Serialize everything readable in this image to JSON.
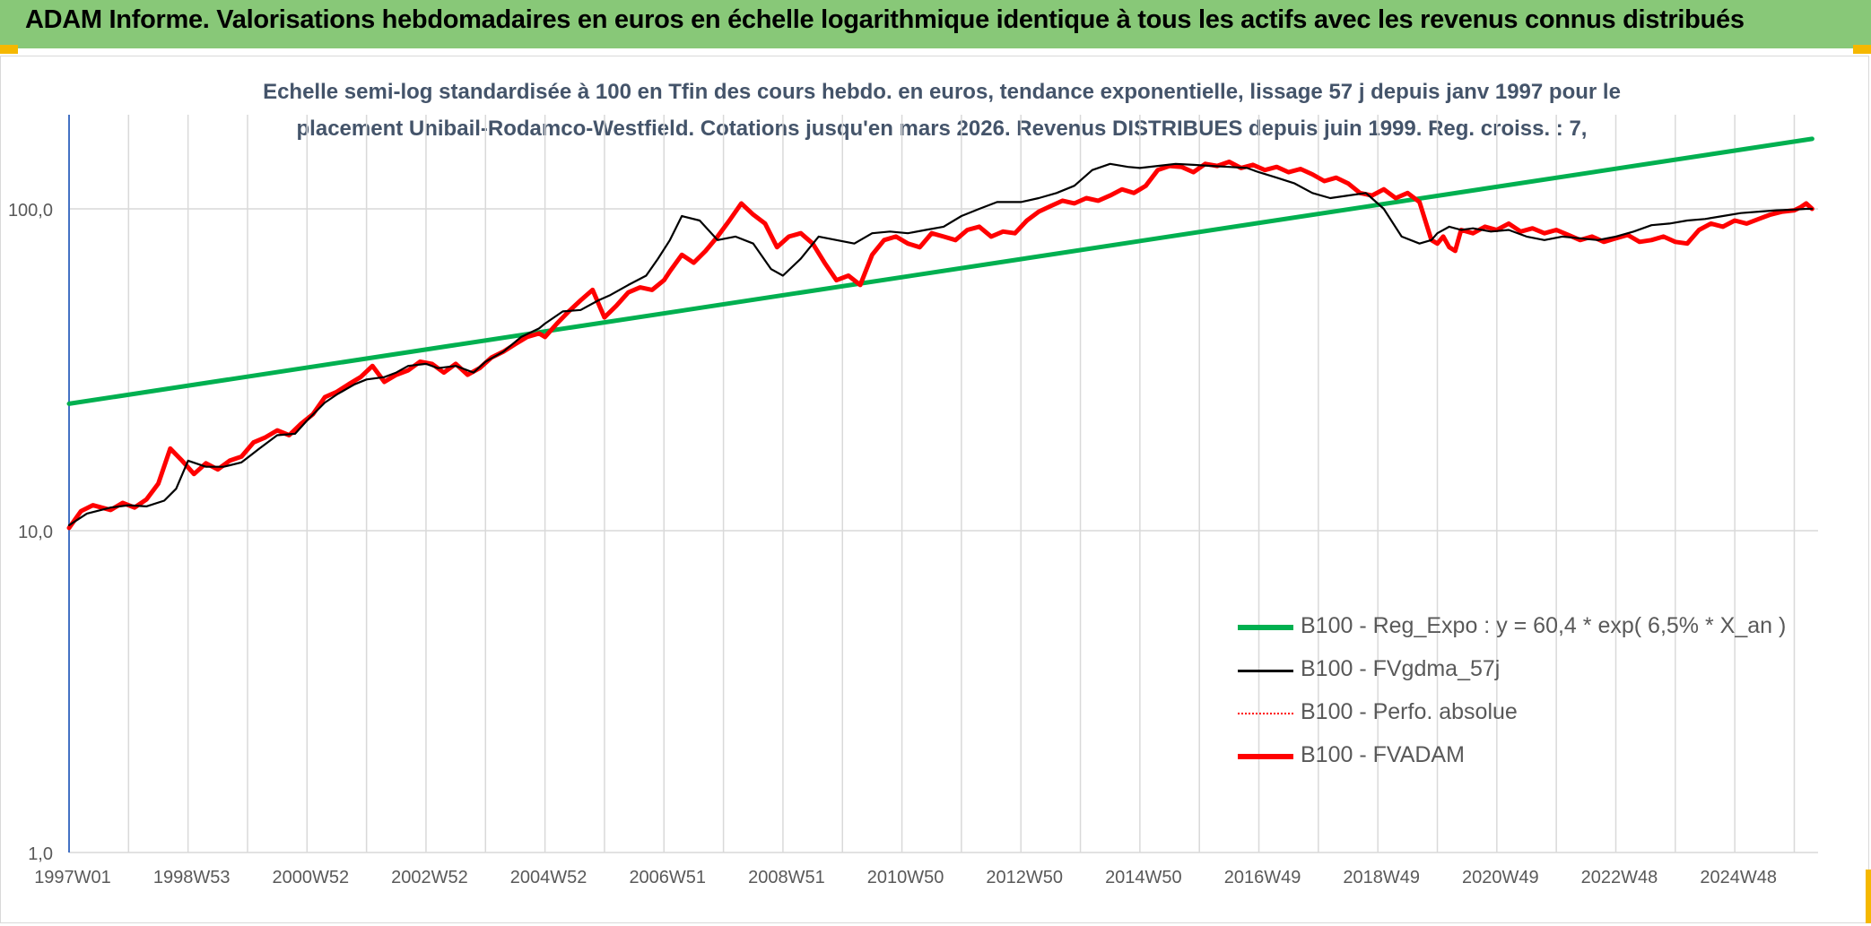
{
  "header": {
    "title": "ADAM Informe. Valorisations hebdomadaires en euros en échelle logarithmique identique à tous les actifs avec les revenus connus distribués"
  },
  "chart_data": {
    "type": "line",
    "title": "",
    "subtitle_line1": "Echelle semi-log standardisée à 100 en Tfin des cours hebdo. en euros, tendance exponentielle, lissage 57 j depuis janv 1997 pour le",
    "subtitle_line2": "placement Unibail-Rodamco-Westfield. Cotations jusqu'en mars 2026. Revenus DISTRIBUES depuis juin 1999. Reg. croiss. : 7,",
    "xlabel": "",
    "ylabel": "",
    "y_scale": "log",
    "ylim": [
      1,
      180
    ],
    "xlim": [
      1997.0,
      2026.4
    ],
    "y_ticks": [
      {
        "value": 1,
        "label": "1,0"
      },
      {
        "value": 10,
        "label": "10,0"
      },
      {
        "value": 100,
        "label": "100,0"
      }
    ],
    "x_ticks": [
      {
        "value": 1997.0,
        "label": "1997W01"
      },
      {
        "value": 1999.0,
        "label": "1998W53"
      },
      {
        "value": 2001.0,
        "label": "2000W52"
      },
      {
        "value": 2003.0,
        "label": "2002W52"
      },
      {
        "value": 2005.0,
        "label": "2004W52"
      },
      {
        "value": 2007.0,
        "label": "2006W51"
      },
      {
        "value": 2009.0,
        "label": "2008W51"
      },
      {
        "value": 2011.0,
        "label": "2010W50"
      },
      {
        "value": 2013.0,
        "label": "2012W50"
      },
      {
        "value": 2015.0,
        "label": "2014W50"
      },
      {
        "value": 2017.0,
        "label": "2016W49"
      },
      {
        "value": 2019.0,
        "label": "2018W49"
      },
      {
        "value": 2021.0,
        "label": "2020W49"
      },
      {
        "value": 2023.0,
        "label": "2022W48"
      },
      {
        "value": 2025.0,
        "label": "2024W48"
      }
    ],
    "grid": true,
    "legend_position": "lower-right",
    "series": [
      {
        "name": "B100 - Reg_Expo : y = 60,4 * exp( 6,5% *  X_an )",
        "color": "#00b050",
        "style": "solid-thick",
        "x": [
          1997.0,
          2026.3
        ],
        "y": [
          24.8,
          165
        ]
      },
      {
        "name": "B100 - FVgdma_57j",
        "color": "#000000",
        "style": "solid-thin",
        "x": [
          1997.0,
          1997.3,
          1997.7,
          1998.0,
          1998.3,
          1998.6,
          1998.8,
          1999.0,
          1999.3,
          1999.6,
          1999.9,
          2000.2,
          2000.5,
          2000.8,
          2001.0,
          2001.3,
          2001.5,
          2001.8,
          2002.0,
          2002.3,
          2002.5,
          2002.7,
          2003.0,
          2003.2,
          2003.5,
          2003.8,
          2004.0,
          2004.3,
          2004.6,
          2004.9,
          2005.0,
          2005.3,
          2005.6,
          2005.9,
          2006.1,
          2006.4,
          2006.7,
          2006.9,
          2007.1,
          2007.3,
          2007.6,
          2007.9,
          2008.2,
          2008.5,
          2008.8,
          2009.0,
          2009.3,
          2009.6,
          2009.9,
          2010.2,
          2010.5,
          2010.8,
          2011.1,
          2011.4,
          2011.7,
          2012.0,
          2012.3,
          2012.6,
          2013.0,
          2013.3,
          2013.6,
          2013.9,
          2014.2,
          2014.5,
          2014.8,
          2015.0,
          2015.3,
          2015.6,
          2015.9,
          2016.2,
          2016.5,
          2016.8,
          2017.0,
          2017.3,
          2017.6,
          2017.9,
          2018.2,
          2018.5,
          2018.8,
          2019.1,
          2019.4,
          2019.7,
          2019.9,
          2020.0,
          2020.2,
          2020.4,
          2020.6,
          2020.9,
          2021.2,
          2021.5,
          2021.8,
          2022.1,
          2022.4,
          2022.7,
          2023.0,
          2023.3,
          2023.6,
          2023.9,
          2024.2,
          2024.5,
          2024.8,
          2025.1,
          2025.4,
          2025.7,
          2026.0,
          2026.2,
          2026.3
        ],
        "y": [
          10.4,
          11.3,
          11.8,
          12.0,
          11.9,
          12.4,
          13.5,
          16.5,
          15.8,
          15.8,
          16.3,
          18.0,
          19.8,
          20.0,
          22.0,
          25.0,
          26.5,
          28.5,
          29.5,
          30.0,
          31.0,
          32.5,
          33.0,
          32.0,
          32.5,
          31.0,
          33.5,
          36.0,
          40.0,
          42.5,
          44.0,
          48.0,
          48.5,
          52.0,
          54.0,
          58.0,
          62.0,
          70.0,
          80.0,
          95.0,
          92.0,
          80.0,
          82.0,
          78.0,
          65.0,
          62.0,
          70.0,
          82.0,
          80.0,
          78.0,
          84.0,
          85.0,
          84.0,
          86.0,
          88.0,
          95.0,
          100.0,
          105.0,
          105.0,
          108.0,
          112.0,
          118.0,
          132.0,
          138.0,
          135.0,
          134.0,
          136.0,
          138.0,
          137.0,
          136.0,
          135.0,
          134.0,
          130.0,
          125.0,
          120.0,
          112.0,
          108.0,
          110.0,
          112.0,
          100.0,
          82.0,
          78.0,
          80.0,
          84.0,
          88.0,
          86.0,
          87.0,
          85.0,
          86.0,
          82.0,
          80.0,
          82.0,
          81.0,
          80.0,
          82.0,
          85.0,
          89.0,
          90.0,
          92.0,
          93.0,
          95.0,
          97.0,
          98.0,
          99.0,
          99.5,
          100.0,
          100.0
        ]
      },
      {
        "name": "B100 - Perfo. absolue",
        "color": "#ff0000",
        "style": "dotted"
      },
      {
        "name": "B100 - FVADAM",
        "color": "#ff0000",
        "style": "solid-thick",
        "x": [
          1997.0,
          1997.2,
          1997.4,
          1997.7,
          1997.9,
          1998.1,
          1998.3,
          1998.5,
          1998.7,
          1998.9,
          1999.1,
          1999.3,
          1999.5,
          1999.7,
          1999.9,
          2000.1,
          2000.3,
          2000.5,
          2000.7,
          2000.9,
          2001.1,
          2001.3,
          2001.5,
          2001.7,
          2001.9,
          2002.1,
          2002.3,
          2002.5,
          2002.7,
          2002.9,
          2003.1,
          2003.3,
          2003.5,
          2003.7,
          2003.9,
          2004.1,
          2004.3,
          2004.5,
          2004.7,
          2004.9,
          2005.0,
          2005.2,
          2005.4,
          2005.6,
          2005.8,
          2006.0,
          2006.2,
          2006.4,
          2006.6,
          2006.8,
          2007.0,
          2007.1,
          2007.3,
          2007.5,
          2007.7,
          2007.9,
          2008.1,
          2008.3,
          2008.5,
          2008.7,
          2008.9,
          2009.1,
          2009.3,
          2009.5,
          2009.7,
          2009.9,
          2010.1,
          2010.3,
          2010.5,
          2010.7,
          2010.9,
          2011.1,
          2011.3,
          2011.5,
          2011.7,
          2011.9,
          2012.1,
          2012.3,
          2012.5,
          2012.7,
          2012.9,
          2013.1,
          2013.3,
          2013.5,
          2013.7,
          2013.9,
          2014.1,
          2014.3,
          2014.5,
          2014.7,
          2014.9,
          2015.1,
          2015.3,
          2015.5,
          2015.7,
          2015.9,
          2016.1,
          2016.3,
          2016.5,
          2016.7,
          2016.9,
          2017.1,
          2017.3,
          2017.5,
          2017.7,
          2017.9,
          2018.1,
          2018.3,
          2018.5,
          2018.7,
          2018.9,
          2019.1,
          2019.3,
          2019.5,
          2019.7,
          2019.9,
          2020.0,
          2020.1,
          2020.2,
          2020.3,
          2020.4,
          2020.6,
          2020.8,
          2021.0,
          2021.2,
          2021.4,
          2021.6,
          2021.8,
          2022.0,
          2022.2,
          2022.4,
          2022.6,
          2022.8,
          2023.0,
          2023.2,
          2023.4,
          2023.6,
          2023.8,
          2024.0,
          2024.2,
          2024.4,
          2024.6,
          2024.8,
          2025.0,
          2025.2,
          2025.4,
          2025.6,
          2025.8,
          2026.0,
          2026.1,
          2026.2,
          2026.3
        ],
        "y": [
          10.2,
          11.5,
          12.0,
          11.6,
          12.2,
          11.8,
          12.5,
          14.0,
          18.0,
          16.5,
          15.0,
          16.2,
          15.5,
          16.5,
          17.0,
          18.8,
          19.5,
          20.5,
          19.8,
          21.5,
          23.0,
          26.0,
          27.0,
          28.5,
          30.0,
          32.5,
          29.0,
          30.5,
          31.5,
          33.5,
          33.0,
          31.0,
          33.0,
          30.5,
          32.0,
          34.5,
          36.0,
          38.0,
          40.0,
          41.0,
          40.0,
          44.0,
          48.0,
          52.0,
          56.0,
          46.0,
          50.0,
          55.0,
          57.0,
          56.0,
          60.0,
          64.0,
          72.0,
          68.0,
          74.0,
          82.0,
          92.0,
          104.0,
          96.0,
          90.0,
          76.0,
          82.0,
          84.0,
          78.0,
          68.0,
          60.0,
          62.0,
          58.0,
          72.0,
          80.0,
          82.0,
          78.0,
          76.0,
          84.0,
          82.0,
          80.0,
          86.0,
          88.0,
          82.0,
          85.0,
          84.0,
          92.0,
          98.0,
          102.0,
          106.0,
          104.0,
          108.0,
          106.0,
          110.0,
          115.0,
          112.0,
          118.0,
          132.0,
          136.0,
          135.0,
          130.0,
          138.0,
          136.0,
          140.0,
          134.0,
          137.0,
          132.0,
          135.0,
          130.0,
          133.0,
          128.0,
          122.0,
          125.0,
          120.0,
          112.0,
          110.0,
          115.0,
          108.0,
          112.0,
          105.0,
          80.0,
          78.0,
          82.0,
          76.0,
          74.0,
          86.0,
          84.0,
          88.0,
          86.0,
          90.0,
          85.0,
          87.0,
          84.0,
          86.0,
          83.0,
          80.0,
          82.0,
          79.0,
          81.0,
          83.0,
          79.0,
          80.0,
          82.0,
          79.0,
          78.0,
          86.0,
          90.0,
          88.0,
          92.0,
          90.0,
          93.0,
          96.0,
          98.0,
          99.0,
          101.0,
          104.0,
          100.0
        ]
      }
    ]
  }
}
